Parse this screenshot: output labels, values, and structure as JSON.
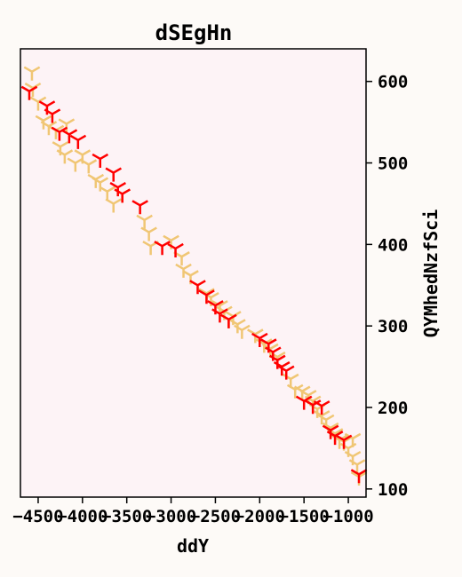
{
  "chart_data": {
    "type": "scatter",
    "title": "dSEgHn",
    "xlabel": "ddY",
    "ylabel": "QYMhedNzfSci",
    "xlim": [
      -4700,
      -800
    ],
    "ylim": [
      90,
      640
    ],
    "xticks": [
      -4500,
      -4000,
      -3500,
      -3000,
      -2500,
      -2000,
      -1500,
      -1000
    ],
    "xtick_labels": [
      "−4500",
      "−4000",
      "−3500",
      "−3000",
      "−2500",
      "−2000",
      "−1500",
      "−1000"
    ],
    "yticks": [
      100,
      200,
      300,
      400,
      500,
      600
    ],
    "ytick_labels": [
      "100",
      "200",
      "300",
      "400",
      "500",
      "600"
    ],
    "y_axis_side": "right",
    "grid": false,
    "marker": "tri_down",
    "series": [
      {
        "color": "#f0c674",
        "points": [
          [
            -4570,
            612
          ],
          [
            -4560,
            592
          ],
          [
            -4500,
            575
          ],
          [
            -4440,
            552
          ],
          [
            -4380,
            545
          ],
          [
            -4300,
            540
          ],
          [
            -4250,
            520
          ],
          [
            -4200,
            510
          ],
          [
            -4180,
            548
          ],
          [
            -4080,
            500
          ],
          [
            -4000,
            510
          ],
          [
            -3930,
            498
          ],
          [
            -3850,
            480
          ],
          [
            -3800,
            476
          ],
          [
            -3720,
            465
          ],
          [
            -3650,
            450
          ],
          [
            -3550,
            462
          ],
          [
            -3300,
            430
          ],
          [
            -3250,
            415
          ],
          [
            -3230,
            398
          ],
          [
            -3000,
            405
          ],
          [
            -2880,
            385
          ],
          [
            -2860,
            370
          ],
          [
            -2780,
            362
          ],
          [
            -2600,
            340
          ],
          [
            -2550,
            335
          ],
          [
            -2450,
            325
          ],
          [
            -2400,
            318
          ],
          [
            -2350,
            308
          ],
          [
            -2300,
            312
          ],
          [
            -2250,
            302
          ],
          [
            -2200,
            295
          ],
          [
            -2050,
            290
          ],
          [
            -1950,
            278
          ],
          [
            -1880,
            272
          ],
          [
            -1800,
            262
          ],
          [
            -1750,
            250
          ],
          [
            -1650,
            235
          ],
          [
            -1600,
            222
          ],
          [
            -1520,
            220
          ],
          [
            -1450,
            215
          ],
          [
            -1400,
            208
          ],
          [
            -1350,
            198
          ],
          [
            -1300,
            190
          ],
          [
            -1250,
            185
          ],
          [
            -1200,
            175
          ],
          [
            -1150,
            168
          ],
          [
            -1100,
            160
          ],
          [
            -1050,
            158
          ],
          [
            -1000,
            150
          ],
          [
            -950,
            162
          ],
          [
            -950,
            140
          ],
          [
            -900,
            130
          ],
          [
            -880,
            115
          ]
        ]
      },
      {
        "color": "#ff0000",
        "points": [
          [
            -4600,
            588
          ],
          [
            -4400,
            570
          ],
          [
            -4340,
            560
          ],
          [
            -4260,
            538
          ],
          [
            -4150,
            535
          ],
          [
            -4050,
            528
          ],
          [
            -3800,
            505
          ],
          [
            -3650,
            488
          ],
          [
            -3600,
            470
          ],
          [
            -3550,
            462
          ],
          [
            -3350,
            448
          ],
          [
            -3100,
            398
          ],
          [
            -2950,
            395
          ],
          [
            -2700,
            350
          ],
          [
            -2600,
            338
          ],
          [
            -2500,
            325
          ],
          [
            -2450,
            315
          ],
          [
            -2350,
            308
          ],
          [
            -2000,
            285
          ],
          [
            -1900,
            278
          ],
          [
            -1850,
            268
          ],
          [
            -1800,
            258
          ],
          [
            -1750,
            250
          ],
          [
            -1700,
            245
          ],
          [
            -1500,
            208
          ],
          [
            -1400,
            203
          ],
          [
            -1300,
            202
          ],
          [
            -1200,
            172
          ],
          [
            -1150,
            165
          ],
          [
            -1050,
            160
          ],
          [
            -880,
            118
          ]
        ]
      }
    ]
  }
}
